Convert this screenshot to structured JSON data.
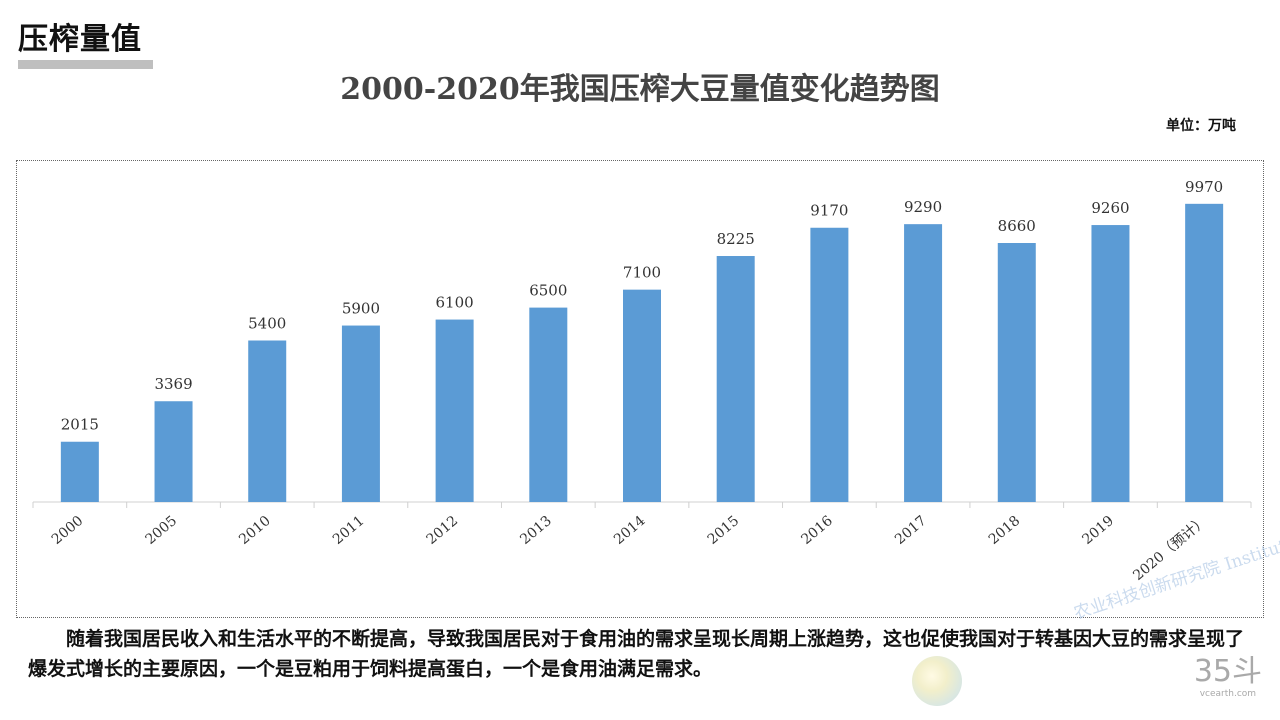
{
  "header": {
    "section_title": "压榨量值",
    "unit": "单位：万吨"
  },
  "caption": "随着我国居民收入和生活水平的不断提高，导致我国居民对于食用油的需求呈现长周期上涨趋势，这也促使我国对于转基因大豆的需求呈现了爆发式增长的主要原因，一个是豆粕用于饲料提高蛋白，一个是食用油满足需求。",
  "watermark": {
    "text": "农业科技创新研究院 Institute"
  },
  "brand": {
    "mark": "35斗",
    "url": "vcearth.com"
  },
  "colors": {
    "bar": "#5b9bd5",
    "axis": "#d0d0d0",
    "label": "#333333",
    "title": "#444444"
  },
  "chart_data": {
    "type": "bar",
    "title": "2000-2020年我国压榨大豆量值变化趋势图",
    "categories": [
      "2000",
      "2005",
      "2010",
      "2011",
      "2012",
      "2013",
      "2014",
      "2015",
      "2016",
      "2017",
      "2018",
      "2019",
      "2020（预计）"
    ],
    "values": [
      2015,
      3369,
      5400,
      5900,
      6100,
      6500,
      7100,
      8225,
      9170,
      9290,
      8660,
      9260,
      9970
    ],
    "ylim": [
      0,
      10800
    ],
    "xlabel": "",
    "ylabel": "",
    "grid": false,
    "legend": "none",
    "data_labels": true
  }
}
